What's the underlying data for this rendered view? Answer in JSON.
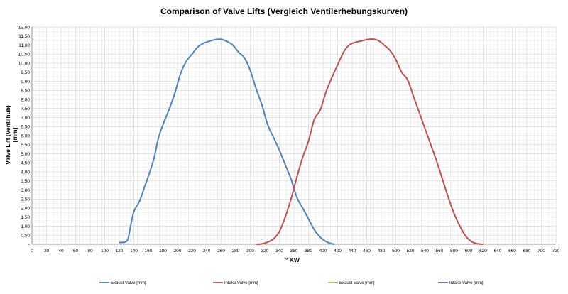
{
  "chart_data": {
    "type": "line",
    "title": "Comparison of Valve Lifts (Vergleich Ventilerhebungskurven)",
    "xlabel": "° KW",
    "ylabel_lines": [
      "Valve Lift (Ventilhub)",
      "[mm]"
    ],
    "xlim": [
      0,
      720
    ],
    "ylim": [
      0,
      12
    ],
    "x_ticks": [
      0,
      20,
      40,
      60,
      80,
      100,
      120,
      140,
      160,
      180,
      200,
      220,
      240,
      260,
      280,
      300,
      320,
      340,
      360,
      380,
      400,
      420,
      440,
      460,
      480,
      500,
      520,
      540,
      560,
      580,
      600,
      620,
      640,
      660,
      680,
      700,
      720
    ],
    "y_ticks": [
      {
        "value": 0,
        "label": "-"
      },
      {
        "value": 0.5,
        "label": "0,50"
      },
      {
        "value": 1,
        "label": "1,00"
      },
      {
        "value": 1.5,
        "label": "1,50"
      },
      {
        "value": 2,
        "label": "2,00"
      },
      {
        "value": 2.5,
        "label": "2,50"
      },
      {
        "value": 3,
        "label": "3,00"
      },
      {
        "value": 3.5,
        "label": "3,50"
      },
      {
        "value": 4,
        "label": "4,00"
      },
      {
        "value": 4.5,
        "label": "4,50"
      },
      {
        "value": 5,
        "label": "5,00"
      },
      {
        "value": 5.5,
        "label": "5,50"
      },
      {
        "value": 6,
        "label": "6,00"
      },
      {
        "value": 6.5,
        "label": "6,50"
      },
      {
        "value": 7,
        "label": "7,00"
      },
      {
        "value": 7.5,
        "label": "7,50"
      },
      {
        "value": 8,
        "label": "8,00"
      },
      {
        "value": 8.5,
        "label": "8,50"
      },
      {
        "value": 9,
        "label": "9,00"
      },
      {
        "value": 9.5,
        "label": "9,50"
      },
      {
        "value": 10,
        "label": "10,00"
      },
      {
        "value": 10.5,
        "label": "10,50"
      },
      {
        "value": 11,
        "label": "11,00"
      },
      {
        "value": 11.5,
        "label": "11,50"
      },
      {
        "value": 12,
        "label": "12,00"
      }
    ],
    "grid": true,
    "legend_position": "bottom",
    "series": [
      {
        "name": "Exaust Valve [mm]",
        "color": "#4f81bd",
        "points": [
          [
            120,
            0.1
          ],
          [
            128,
            0.12
          ],
          [
            132,
            0.3
          ],
          [
            135,
            0.9
          ],
          [
            140,
            1.8
          ],
          [
            148,
            2.4
          ],
          [
            155,
            3.2
          ],
          [
            162,
            4.0
          ],
          [
            168,
            4.8
          ],
          [
            174,
            5.9
          ],
          [
            180,
            6.6
          ],
          [
            188,
            7.4
          ],
          [
            196,
            8.3
          ],
          [
            204,
            9.4
          ],
          [
            212,
            10.1
          ],
          [
            220,
            10.5
          ],
          [
            228,
            10.9
          ],
          [
            236,
            11.1
          ],
          [
            244,
            11.22
          ],
          [
            252,
            11.3
          ],
          [
            260,
            11.32
          ],
          [
            268,
            11.2
          ],
          [
            276,
            11.0
          ],
          [
            284,
            10.6
          ],
          [
            292,
            10.3
          ],
          [
            300,
            9.6
          ],
          [
            308,
            8.6
          ],
          [
            316,
            7.7
          ],
          [
            324,
            6.6
          ],
          [
            332,
            5.9
          ],
          [
            340,
            5.2
          ],
          [
            348,
            4.4
          ],
          [
            356,
            3.6
          ],
          [
            364,
            2.6
          ],
          [
            372,
            2.0
          ],
          [
            380,
            1.4
          ],
          [
            388,
            0.8
          ],
          [
            396,
            0.4
          ],
          [
            404,
            0.15
          ],
          [
            412,
            0.03
          ],
          [
            416,
            0.0
          ]
        ]
      },
      {
        "name": "Intake Valve [mm]",
        "color": "#c0504d",
        "points": [
          [
            308,
            0.0
          ],
          [
            316,
            0.02
          ],
          [
            324,
            0.12
          ],
          [
            332,
            0.3
          ],
          [
            340,
            0.7
          ],
          [
            348,
            1.5
          ],
          [
            356,
            2.5
          ],
          [
            364,
            3.7
          ],
          [
            372,
            4.8
          ],
          [
            380,
            5.7
          ],
          [
            388,
            6.9
          ],
          [
            396,
            7.4
          ],
          [
            404,
            8.4
          ],
          [
            412,
            9.2
          ],
          [
            420,
            9.9
          ],
          [
            428,
            10.6
          ],
          [
            436,
            11.0
          ],
          [
            444,
            11.15
          ],
          [
            452,
            11.22
          ],
          [
            460,
            11.3
          ],
          [
            468,
            11.33
          ],
          [
            476,
            11.25
          ],
          [
            484,
            11.0
          ],
          [
            492,
            10.7
          ],
          [
            500,
            10.2
          ],
          [
            508,
            9.5
          ],
          [
            516,
            9.1
          ],
          [
            524,
            8.2
          ],
          [
            532,
            7.3
          ],
          [
            540,
            6.4
          ],
          [
            548,
            5.5
          ],
          [
            556,
            4.6
          ],
          [
            564,
            3.6
          ],
          [
            572,
            2.6
          ],
          [
            580,
            1.7
          ],
          [
            588,
            1.0
          ],
          [
            596,
            0.45
          ],
          [
            604,
            0.15
          ],
          [
            612,
            0.03
          ],
          [
            620,
            0.0
          ]
        ]
      },
      {
        "name": "Exaust Valve [mm]",
        "color": "#9bbb59",
        "points": []
      },
      {
        "name": "Intake Valve [mm]",
        "color": "#8064a2",
        "points": []
      }
    ]
  }
}
